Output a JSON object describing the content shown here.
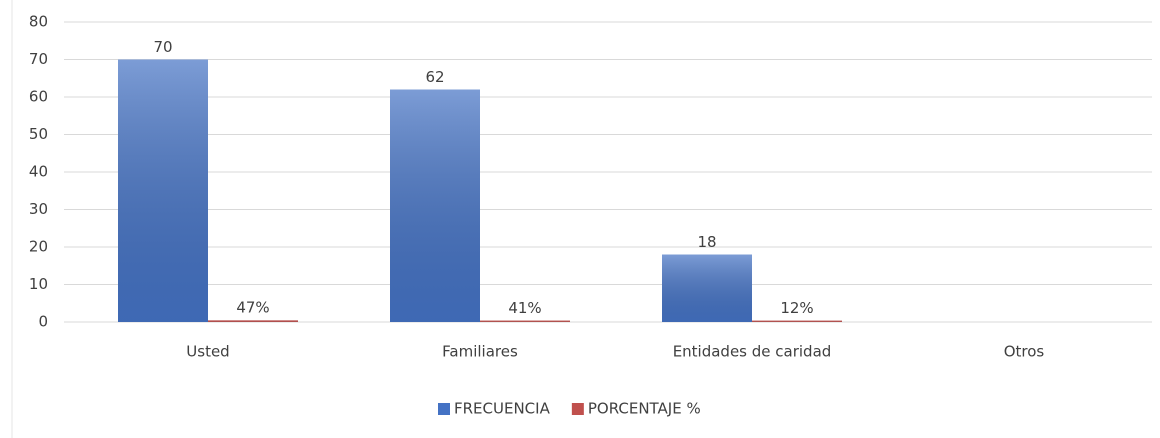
{
  "chart_data": {
    "type": "bar",
    "categories": [
      "Usted",
      "Familiares",
      "Entidades de caridad",
      "Otros"
    ],
    "series": [
      {
        "name": "FRECUENCIA",
        "color": "#4472c4",
        "values": [
          70,
          62,
          18,
          null
        ]
      },
      {
        "name": "PORCENTAJE %",
        "color": "#c0504d",
        "values": [
          0.47,
          0.41,
          0.12,
          null
        ],
        "value_labels": [
          "47%",
          "41%",
          "12%",
          null
        ]
      }
    ],
    "ylim": [
      0,
      80
    ],
    "yticks": [
      0,
      10,
      20,
      30,
      40,
      50,
      60,
      70,
      80
    ],
    "grid": true,
    "legend": "bottom"
  }
}
